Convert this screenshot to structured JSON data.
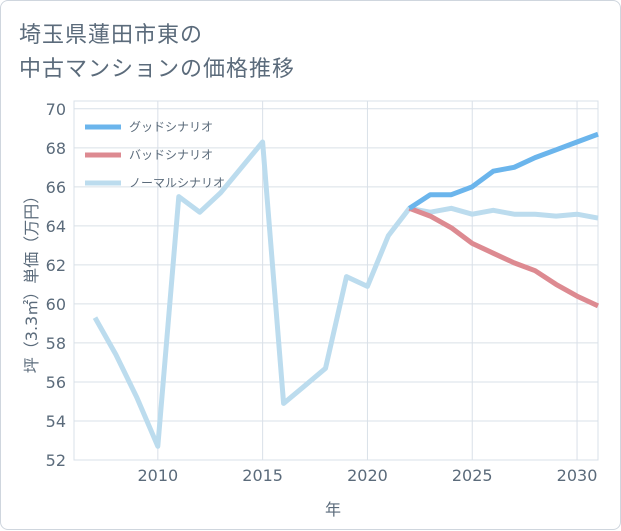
{
  "title": "埼玉県蓮田市東の\n中古マンションの価格推移",
  "colors": {
    "good": "#6bb5ec",
    "bad": "#dd8a91",
    "normal": "#bcdcee",
    "grid": "#d9e0e8",
    "text": "#5b6b7b"
  },
  "chart_data": {
    "type": "line",
    "title": "埼玉県蓮田市東の\n中古マンションの価格推移",
    "xlabel": "年",
    "ylabel": "坪（3.3㎡）単価（万円）",
    "xlim": [
      2006,
      2031
    ],
    "ylim": [
      52,
      70.4
    ],
    "xticks": [
      2010,
      2015,
      2020,
      2025,
      2030
    ],
    "yticks": [
      52,
      54,
      56,
      58,
      60,
      62,
      64,
      66,
      68,
      70
    ],
    "grid": true,
    "legend_position": "top-left",
    "series": [
      {
        "name": "グッドシナリオ",
        "color": "#6bb5ec",
        "x": [
          2022,
          2023,
          2024,
          2025,
          2026,
          2027,
          2028,
          2029,
          2030,
          2031
        ],
        "y": [
          64.9,
          65.6,
          65.6,
          66.0,
          66.8,
          67.0,
          67.5,
          67.9,
          68.3,
          68.7
        ]
      },
      {
        "name": "バッドシナリオ",
        "color": "#dd8a91",
        "x": [
          2022,
          2023,
          2024,
          2025,
          2026,
          2027,
          2028,
          2029,
          2030,
          2031
        ],
        "y": [
          64.9,
          64.5,
          63.9,
          63.1,
          62.6,
          62.1,
          61.7,
          61.0,
          60.4,
          59.9
        ]
      },
      {
        "name": "ノーマルシナリオ",
        "color": "#bcdcee",
        "x": [
          2007,
          2008,
          2009,
          2010,
          2011,
          2012,
          2013,
          2014,
          2015,
          2016,
          2017,
          2018,
          2019,
          2020,
          2021,
          2022,
          2023,
          2024,
          2025,
          2026,
          2027,
          2028,
          2029,
          2030,
          2031
        ],
        "y": [
          59.3,
          57.4,
          55.2,
          52.7,
          65.5,
          64.7,
          65.7,
          67.0,
          68.3,
          54.9,
          55.8,
          56.7,
          61.4,
          60.9,
          63.5,
          64.9,
          64.7,
          64.9,
          64.6,
          64.8,
          64.6,
          64.6,
          64.5,
          64.6,
          64.4
        ]
      }
    ]
  }
}
